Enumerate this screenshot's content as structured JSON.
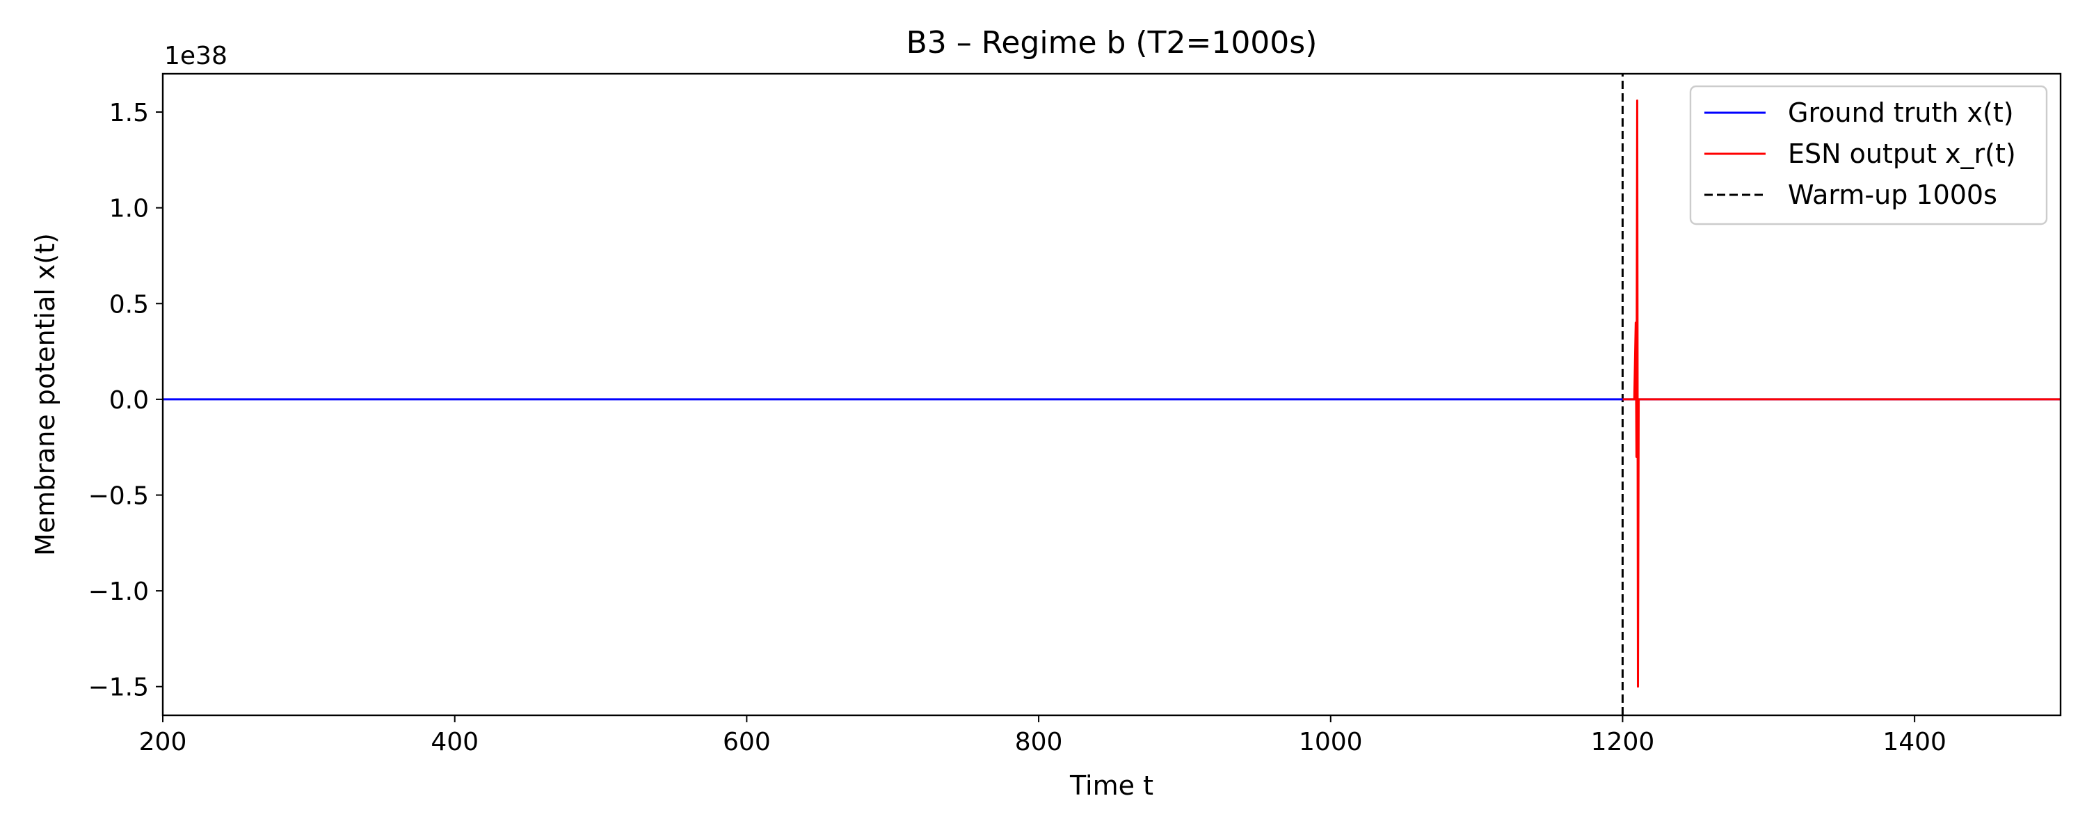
{
  "chart_data": {
    "type": "line",
    "title": "B3 – Regime b (T2=1000s)",
    "xlabel": "Time t",
    "ylabel": "Membrane potential x(t)",
    "y_offset_label": "1e38",
    "y_scale": 1e+38,
    "xlim": [
      200,
      1500
    ],
    "ylim": [
      -1.65,
      1.7
    ],
    "x_ticks": [
      200,
      400,
      600,
      800,
      1000,
      1200,
      1400
    ],
    "x_tick_labels": [
      "200",
      "400",
      "600",
      "800",
      "1000",
      "1200",
      "1400"
    ],
    "y_ticks": [
      -1.5,
      -1.0,
      -0.5,
      0.0,
      0.5,
      1.0,
      1.5
    ],
    "y_tick_labels": [
      "−1.5",
      "−1.0",
      "−0.5",
      "0.0",
      "0.5",
      "1.0",
      "1.5"
    ],
    "grid": false,
    "legend_position": "top-right",
    "series": [
      {
        "name": "Ground truth x(t)",
        "color": "#0000ff",
        "style": "solid",
        "x": [
          200,
          1500
        ],
        "y": [
          0.0,
          0.0
        ]
      },
      {
        "name": "ESN output x_r(t)",
        "color": "#ff0000",
        "style": "solid",
        "x": [
          1200,
          1208,
          1209,
          1209.5,
          1210,
          1210.5,
          1211,
          1500
        ],
        "y": [
          0.0,
          0.0,
          0.4,
          -0.3,
          1.56,
          -1.5,
          0.0,
          0.0
        ]
      },
      {
        "name": "Warm-up 1000s",
        "color": "#000000",
        "style": "dashed",
        "x": [
          1200,
          1200
        ],
        "y": [
          -1.65,
          1.7
        ]
      }
    ]
  }
}
